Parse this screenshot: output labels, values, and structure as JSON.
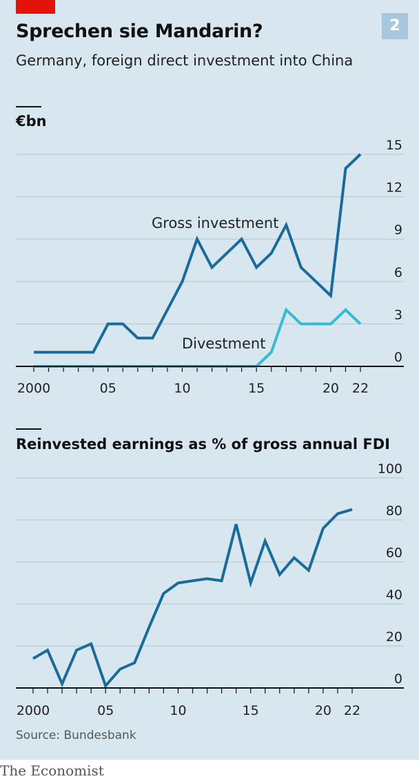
{
  "header": {
    "title": "Sprechen sie Mandarin?",
    "subtitle": "Germany, foreign direct investment into China",
    "badge": "2"
  },
  "colors": {
    "panel": "#d7e6ef",
    "accent_red": "#e3120b",
    "badge": "#a8c6dc",
    "dark_blue": "#1a6b9a",
    "light_blue": "#35bcd5",
    "grid": "#b3c5d1"
  },
  "chart_data": [
    {
      "type": "line",
      "title": "€bn",
      "x": [
        2000,
        2001,
        2002,
        2003,
        2004,
        2005,
        2006,
        2007,
        2008,
        2009,
        2010,
        2011,
        2012,
        2013,
        2014,
        2015,
        2016,
        2017,
        2018,
        2019,
        2020,
        2021,
        2022
      ],
      "series": [
        {
          "name": "Gross investment",
          "values": [
            1,
            1,
            1,
            1,
            1,
            3,
            3,
            2,
            2,
            4,
            6,
            9,
            7,
            8,
            9,
            7,
            8,
            10,
            7,
            6,
            5,
            14,
            15
          ]
        },
        {
          "name": "Divestment",
          "values": [
            0,
            0,
            0,
            0,
            0,
            0,
            0,
            0,
            0,
            0,
            0,
            0,
            0,
            0,
            0,
            0,
            1,
            4,
            3,
            3,
            3,
            4,
            3
          ]
        }
      ],
      "xticks": [
        2000,
        2005,
        2010,
        2015,
        2020,
        2022
      ],
      "xtick_labels": [
        "2000",
        "05",
        "10",
        "15",
        "20",
        "22"
      ],
      "yticks": [
        0,
        3,
        6,
        9,
        12,
        15
      ],
      "ylim": [
        0,
        15
      ],
      "xlim": [
        2000,
        2022
      ],
      "grid": true
    },
    {
      "type": "line",
      "title": "Reinvested earnings as % of gross annual FDI",
      "x": [
        2000,
        2001,
        2002,
        2003,
        2004,
        2005,
        2006,
        2007,
        2008,
        2009,
        2010,
        2011,
        2012,
        2013,
        2014,
        2015,
        2016,
        2017,
        2018,
        2019,
        2020,
        2021,
        2022
      ],
      "series": [
        {
          "values": [
            14,
            18,
            2,
            18,
            21,
            1,
            9,
            12,
            29,
            45,
            50,
            51,
            52,
            51,
            78,
            50,
            70,
            54,
            62,
            56,
            76,
            83,
            85
          ]
        }
      ],
      "xticks": [
        2000,
        2005,
        2010,
        2015,
        2020,
        2022
      ],
      "xtick_labels": [
        "2000",
        "05",
        "10",
        "15",
        "20",
        "22"
      ],
      "yticks": [
        0,
        20,
        40,
        60,
        80,
        100
      ],
      "ylim": [
        0,
        100
      ],
      "xlim": [
        2000,
        2022
      ],
      "grid": true
    }
  ],
  "footer": {
    "source": "Source: Bundesbank",
    "brand": "The Economist"
  }
}
